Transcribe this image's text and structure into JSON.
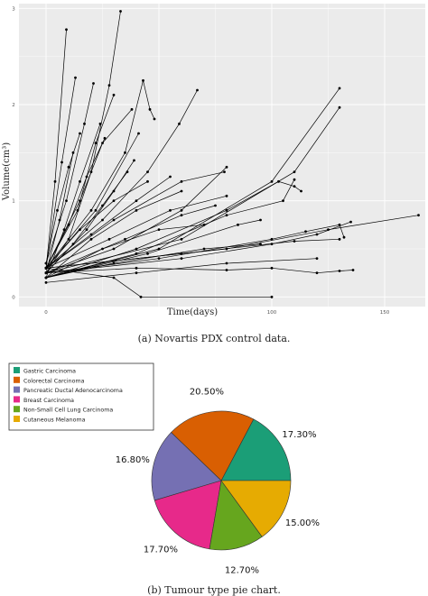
{
  "captions": {
    "a": "(a) Novartis PDX control data.",
    "b": "(b) Tumour type pie chart."
  },
  "colors": {
    "panel_bg": "#ebebeb",
    "gridline": "#ffffff",
    "line": "#000000"
  },
  "chart_data": [
    {
      "type": "line",
      "xlabel": "Time(days)",
      "ylabel": "Volume(cm³)",
      "xlim": [
        -12,
        168
      ],
      "ylim": [
        -0.1,
        3.05
      ],
      "x_ticks": [
        0,
        50,
        100,
        150
      ],
      "x_tick_labels": [
        "0",
        "",
        "100",
        "150"
      ],
      "y_ticks": [
        0,
        1,
        2,
        3
      ],
      "y_tick_labels": [
        "0",
        "1",
        "2",
        "3"
      ],
      "grid": true,
      "legend": "none",
      "note": "Spaghetti plot of several hundred individual tumour growth curves; representative series listed below.",
      "series": [
        {
          "x": [
            0,
            4,
            9
          ],
          "values": [
            0.3,
            1.2,
            2.78
          ]
        },
        {
          "x": [
            0,
            10,
            20,
            28,
            33
          ],
          "values": [
            0.25,
            0.6,
            1.3,
            2.2,
            2.97
          ]
        },
        {
          "x": [
            0,
            7,
            13
          ],
          "values": [
            0.3,
            1.4,
            2.28
          ]
        },
        {
          "x": [
            0,
            9,
            17,
            21
          ],
          "values": [
            0.35,
            1.0,
            1.8,
            2.22
          ]
        },
        {
          "x": [
            0,
            14,
            22,
            30
          ],
          "values": [
            0.3,
            0.9,
            1.6,
            2.1
          ]
        },
        {
          "x": [
            0,
            20,
            35,
            43,
            46,
            48
          ],
          "values": [
            0.3,
            0.9,
            1.5,
            2.25,
            1.95,
            1.85
          ]
        },
        {
          "x": [
            0,
            25,
            45,
            59,
            67
          ],
          "values": [
            0.3,
            0.8,
            1.3,
            1.8,
            2.15
          ]
        },
        {
          "x": [
            0,
            18,
            30,
            39
          ],
          "values": [
            0.25,
            0.7,
            1.1,
            1.42
          ]
        },
        {
          "x": [
            0,
            22,
            41
          ],
          "values": [
            0.3,
            0.9,
            1.7
          ]
        },
        {
          "x": [
            0,
            8,
            15,
            24
          ],
          "values": [
            0.2,
            0.7,
            1.2,
            1.8
          ]
        },
        {
          "x": [
            0,
            30,
            60,
            80
          ],
          "values": [
            0.25,
            0.5,
            0.9,
            1.35
          ]
        },
        {
          "x": [
            0,
            50,
            100,
            130
          ],
          "values": [
            0.2,
            0.5,
            1.2,
            2.17
          ]
        },
        {
          "x": [
            0,
            60,
            110,
            130
          ],
          "values": [
            0.25,
            0.6,
            1.3,
            1.97
          ]
        },
        {
          "x": [
            0,
            40,
            80,
            103,
            110,
            113
          ],
          "values": [
            0.2,
            0.5,
            0.9,
            1.2,
            1.15,
            1.1
          ]
        },
        {
          "x": [
            0,
            40,
            80,
            105,
            110
          ],
          "values": [
            0.2,
            0.45,
            0.85,
            1.0,
            1.22
          ]
        },
        {
          "x": [
            0,
            50,
            100,
            115,
            130,
            132
          ],
          "values": [
            0.25,
            0.4,
            0.6,
            0.68,
            0.75,
            0.62
          ]
        },
        {
          "x": [
            0,
            80,
            125,
            165
          ],
          "values": [
            0.3,
            0.5,
            0.7,
            0.85
          ]
        },
        {
          "x": [
            0,
            60,
            100,
            120,
            135
          ],
          "values": [
            0.25,
            0.4,
            0.55,
            0.65,
            0.78
          ]
        },
        {
          "x": [
            0,
            60,
            110,
            130
          ],
          "values": [
            0.3,
            0.45,
            0.58,
            0.6
          ]
        },
        {
          "x": [
            0,
            40,
            80,
            100,
            120,
            130,
            136
          ],
          "values": [
            0.25,
            0.3,
            0.28,
            0.3,
            0.25,
            0.27,
            0.28
          ]
        },
        {
          "x": [
            0,
            30,
            42,
            100
          ],
          "values": [
            0.3,
            0.2,
            0.0,
            0.0
          ]
        },
        {
          "x": [
            0,
            30,
            60,
            79
          ],
          "values": [
            0.3,
            0.8,
            1.2,
            1.3
          ]
        },
        {
          "x": [
            0,
            20,
            40,
            60
          ],
          "values": [
            0.2,
            0.6,
            0.9,
            1.1
          ]
        },
        {
          "x": [
            0,
            35,
            60,
            75
          ],
          "values": [
            0.25,
            0.6,
            0.85,
            0.95
          ]
        },
        {
          "x": [
            0,
            45,
            85,
            95
          ],
          "values": [
            0.2,
            0.45,
            0.75,
            0.8
          ]
        },
        {
          "x": [
            0,
            25,
            50,
            70
          ],
          "values": [
            0.2,
            0.5,
            0.7,
            0.75
          ]
        },
        {
          "x": [
            0,
            15,
            30,
            45
          ],
          "values": [
            0.3,
            0.7,
            1.0,
            1.2
          ]
        },
        {
          "x": [
            0,
            6,
            12
          ],
          "values": [
            0.25,
            0.8,
            1.5
          ]
        },
        {
          "x": [
            0,
            30,
            70,
            95
          ],
          "values": [
            0.2,
            0.35,
            0.5,
            0.55
          ]
        },
        {
          "x": [
            0,
            40,
            80,
            120
          ],
          "values": [
            0.15,
            0.25,
            0.35,
            0.4
          ]
        },
        {
          "x": [
            0,
            10,
            18,
            26
          ],
          "values": [
            0.3,
            0.75,
            1.25,
            1.65
          ]
        },
        {
          "x": [
            0,
            12,
            25,
            36
          ],
          "values": [
            0.25,
            0.55,
            0.95,
            1.3
          ]
        },
        {
          "x": [
            0,
            20,
            40,
            55
          ],
          "values": [
            0.3,
            0.65,
            1.0,
            1.25
          ]
        },
        {
          "x": [
            0,
            5,
            10,
            15
          ],
          "values": [
            0.35,
            0.9,
            1.35,
            1.7
          ]
        },
        {
          "x": [
            0,
            28,
            55,
            80
          ],
          "values": [
            0.3,
            0.6,
            0.9,
            1.05
          ]
        },
        {
          "x": [
            0,
            15,
            25,
            38
          ],
          "values": [
            0.3,
            1.0,
            1.6,
            1.95
          ]
        }
      ]
    },
    {
      "type": "pie",
      "legend": "top-left",
      "categories": [
        "Gastric Carcinoma",
        "Colorectal Carcinoma",
        "Pancreatic Ductal Adenocarcinoma",
        "Breast Carcinoma",
        "Non-Small Cell Lung Carcinoma",
        "Cutaneous Melanoma"
      ],
      "values": [
        17.3,
        20.5,
        16.8,
        17.7,
        12.7,
        15.0
      ],
      "labels": [
        "17.30%",
        "20.50%",
        "16.80%",
        "17.70%",
        "12.70%",
        "15.00%"
      ],
      "colors": [
        "#1b9e77",
        "#d95f02",
        "#7570b3",
        "#e7298a",
        "#66a61e",
        "#e6ab02"
      ]
    }
  ]
}
